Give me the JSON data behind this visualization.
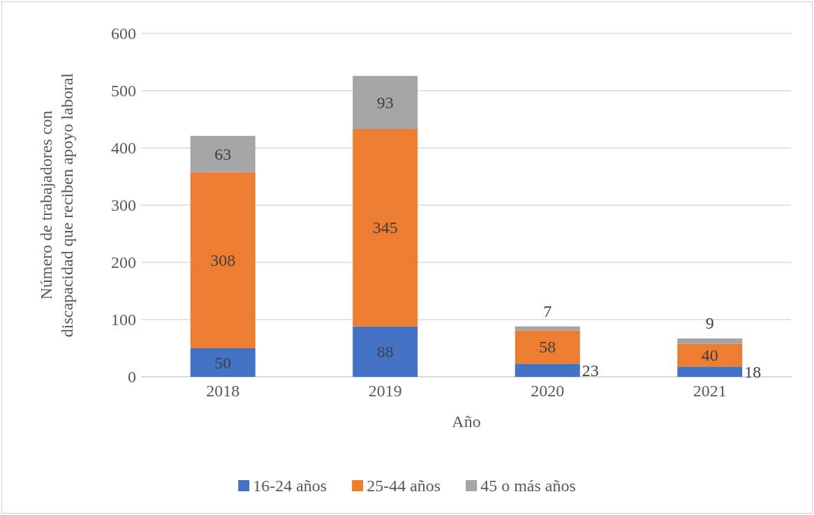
{
  "chart_data": {
    "type": "bar",
    "stacked": true,
    "xlabel": "Año",
    "ylabel": "Número de trabajadores con discapacidad que reciben apoyo laboral",
    "categories": [
      "2018",
      "2019",
      "2020",
      "2021"
    ],
    "series": [
      {
        "name": "16-24 años",
        "color": "#4472c4",
        "values": [
          50,
          88,
          23,
          18
        ]
      },
      {
        "name": "25-44 años",
        "color": "#ed7d31",
        "values": [
          308,
          345,
          58,
          40
        ]
      },
      {
        "name": "45 o más años",
        "color": "#a5a5a5",
        "values": [
          63,
          93,
          7,
          9
        ]
      }
    ],
    "ylim": [
      0,
      600
    ],
    "yticks": [
      0,
      100,
      200,
      300,
      400,
      500,
      600
    ],
    "grid": "y",
    "legend": "bottom",
    "data_labels": true
  }
}
